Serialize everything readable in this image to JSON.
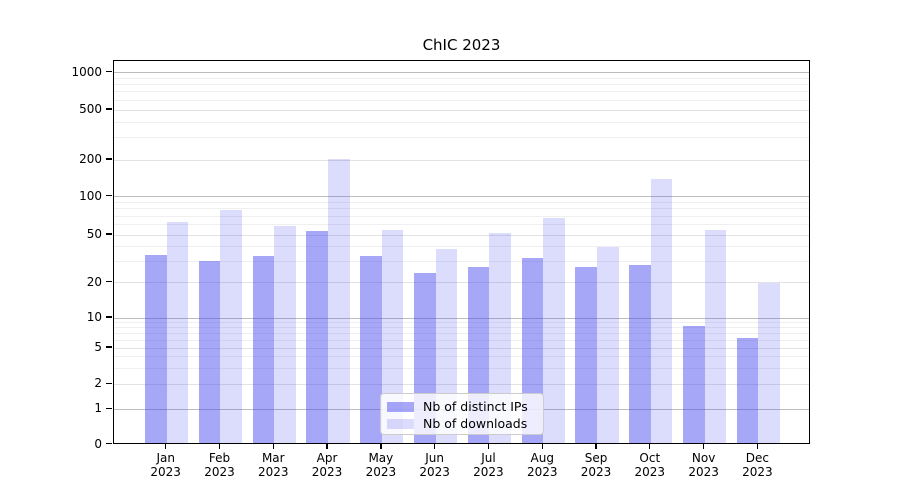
{
  "chart_data": {
    "type": "bar",
    "title": "ChIC 2023",
    "year_label": "2023",
    "categories": [
      "Jan",
      "Feb",
      "Mar",
      "Apr",
      "May",
      "Jun",
      "Jul",
      "Aug",
      "Sep",
      "Oct",
      "Nov",
      "Dec"
    ],
    "series": [
      {
        "name": "Nb of distinct IPs",
        "color": "rgba(68,68,238,0.47)",
        "values": [
          33,
          29,
          32,
          52,
          32,
          23,
          26,
          31,
          26,
          27,
          8,
          6
        ]
      },
      {
        "name": "Nb of downloads",
        "color": "rgba(68,68,238,0.19)",
        "values": [
          61,
          76,
          57,
          198,
          53,
          37,
          50,
          66,
          38,
          133,
          53,
          19
        ]
      }
    ],
    "xlabel": "",
    "ylabel": "",
    "yscale": "symlog",
    "yticks": [
      0,
      1,
      2,
      5,
      10,
      20,
      50,
      100,
      200,
      500,
      1000
    ],
    "ylim": [
      0,
      1400
    ],
    "grid": true,
    "legend_position": "lower center",
    "colors": {
      "major_grid": "#bdbdbd",
      "labeled_minor_grid": "#e2e2e2",
      "minor_grid": "#efefef",
      "axis": "#000000",
      "background": "#ffffff"
    }
  }
}
